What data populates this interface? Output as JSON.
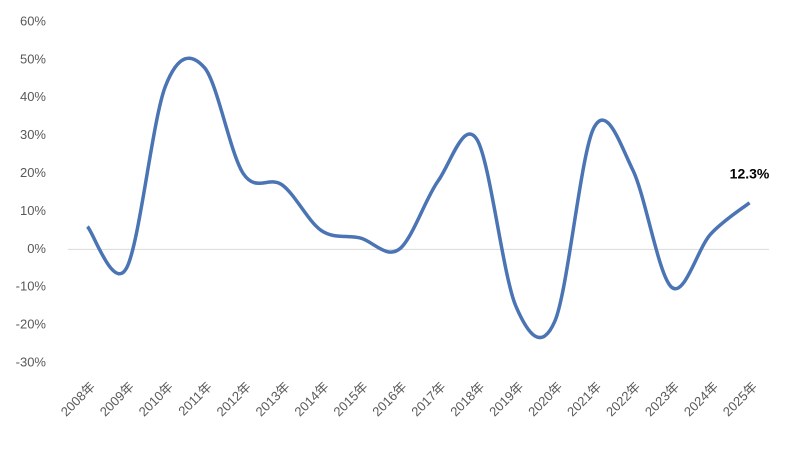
{
  "chart_data": {
    "type": "line",
    "categories": [
      "2008年",
      "2009年",
      "2010年",
      "2011年",
      "2012年",
      "2013年",
      "2014年",
      "2015年",
      "2016年",
      "2017年",
      "2018年",
      "2019年",
      "2020年",
      "2021年",
      "2022年",
      "2023年",
      "2024年",
      "2025年"
    ],
    "series": [
      {
        "color": "#4a74b4",
        "values": [
          6,
          -5,
          43,
          48,
          20,
          17,
          5,
          3,
          0,
          18,
          29,
          -15,
          -19,
          32,
          21,
          -10,
          4,
          12.3
        ],
        "value_labels": [
          null,
          null,
          null,
          null,
          null,
          null,
          null,
          null,
          null,
          null,
          null,
          null,
          null,
          null,
          null,
          null,
          null,
          "12.3%"
        ]
      }
    ],
    "ylim": [
      -30,
      60
    ],
    "yticks": [
      {
        "value": -30,
        "label": "-30%"
      },
      {
        "value": -20,
        "label": "-20%"
      },
      {
        "value": -10,
        "label": "-10%"
      },
      {
        "value": 0,
        "label": "0%"
      },
      {
        "value": 10,
        "label": "10%"
      },
      {
        "value": 20,
        "label": "20%"
      },
      {
        "value": 30,
        "label": "30%"
      },
      {
        "value": 40,
        "label": "40%"
      },
      {
        "value": 50,
        "label": "50%"
      },
      {
        "value": 60,
        "label": "60%"
      }
    ],
    "grid": false,
    "smooth": true
  }
}
